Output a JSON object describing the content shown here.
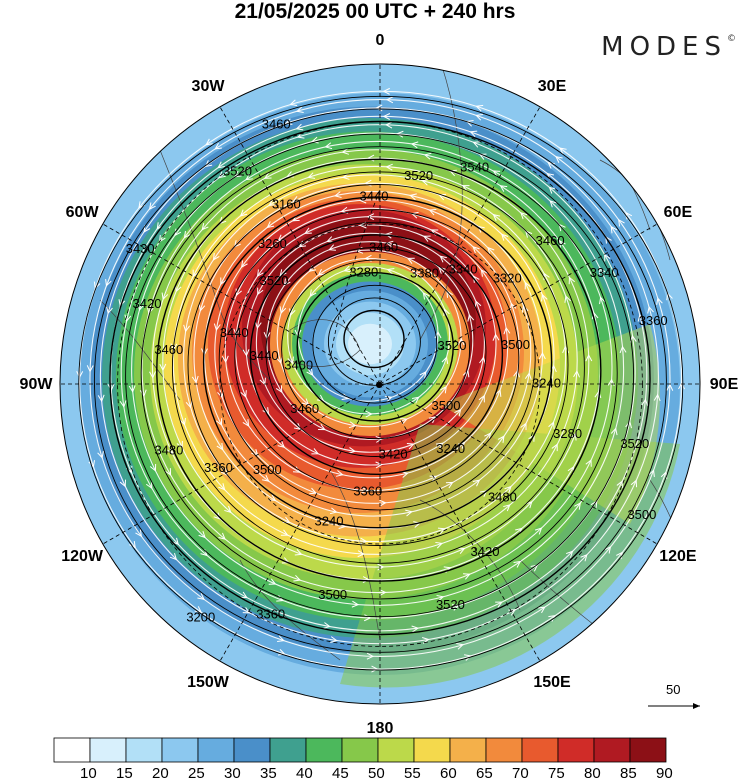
{
  "title": "21/05/2025  00 UTC  + 240 hrs",
  "brand": "MODES",
  "brand_mark": "©",
  "longitudes": [
    {
      "label": "0",
      "lon": 0
    },
    {
      "label": "30E",
      "lon": 30
    },
    {
      "label": "60E",
      "lon": 60
    },
    {
      "label": "90E",
      "lon": 90
    },
    {
      "label": "120E",
      "lon": 120
    },
    {
      "label": "150E",
      "lon": 150
    },
    {
      "label": "180",
      "lon": 180
    },
    {
      "label": "150W",
      "lon": -150
    },
    {
      "label": "120W",
      "lon": -120
    },
    {
      "label": "90W",
      "lon": -90
    },
    {
      "label": "60W",
      "lon": -60
    },
    {
      "label": "30W",
      "lon": -30
    }
  ],
  "contour_labels": [
    "3520",
    "3460",
    "3460",
    "3240",
    "3440",
    "3320",
    "3240",
    "3160",
    "3280",
    "3480",
    "3540",
    "3520",
    "3430",
    "3360",
    "3200",
    "3280",
    "3500",
    "3440",
    "3340",
    "3360",
    "3260",
    "3240",
    "3360",
    "3520",
    "3420",
    "3420",
    "3340",
    "3360",
    "3460",
    "3500",
    "3400",
    "3380",
    "3420",
    "3520",
    "3500",
    "3500",
    "3440",
    "3480",
    "3460",
    "3460",
    "3500",
    "3520",
    "3520"
  ],
  "colorbar": {
    "ticks": [
      "10",
      "15",
      "20",
      "25",
      "30",
      "35",
      "40",
      "45",
      "50",
      "55",
      "60",
      "65",
      "70",
      "75",
      "80",
      "85",
      "90"
    ],
    "colors": [
      "#ffffff",
      "#d8f0fc",
      "#b2e0f7",
      "#8cc8ef",
      "#66acdf",
      "#4a8fc9",
      "#3fa08f",
      "#4cb85c",
      "#86c84a",
      "#bcd94a",
      "#f4d94c",
      "#f4b04a",
      "#f28a3c",
      "#e85a2e",
      "#d02c28",
      "#b01a22",
      "#8c1016"
    ]
  },
  "reference_vector": {
    "value": "50"
  },
  "chart_data": {
    "type": "heatmap",
    "variable": "wind speed (shaded), geopotential height (contours), streamlines",
    "projection": "polar stereographic, northern hemisphere",
    "colorbar_levels": [
      10,
      15,
      20,
      25,
      30,
      35,
      40,
      45,
      50,
      55,
      60,
      65,
      70,
      75,
      80,
      85,
      90
    ],
    "contour_values": [
      3160,
      3200,
      3240,
      3260,
      3280,
      3320,
      3340,
      3360,
      3380,
      3400,
      3420,
      3430,
      3440,
      3460,
      3480,
      3500,
      3520,
      3540
    ]
  }
}
